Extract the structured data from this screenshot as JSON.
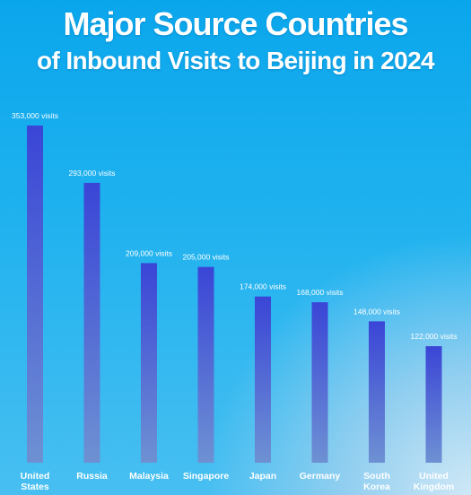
{
  "header": {
    "title_line1": "Major Source Countries",
    "title_line2": "of Inbound Visits to Beijing in 2024"
  },
  "colors": {
    "bar_top": "#3a45d6",
    "bar_bottom": "#6e91d3",
    "label": "#ffffff"
  },
  "chart_data": {
    "type": "bar",
    "title": "Major Source Countries of Inbound Visits to Beijing in 2024",
    "categories": [
      [
        "United",
        "States"
      ],
      [
        "Russia"
      ],
      [
        "Malaysia"
      ],
      [
        "Singapore"
      ],
      [
        "Japan"
      ],
      [
        "Germany"
      ],
      [
        "South",
        "Korea"
      ],
      [
        "United",
        "Kingdom"
      ]
    ],
    "values": [
      353000,
      293000,
      209000,
      205000,
      174000,
      168000,
      148000,
      122000
    ],
    "value_labels": [
      "353,000 visits",
      "293,000 visits",
      "209,000 visits",
      "205,000 visits",
      "174,000 visits",
      "168,000 visits",
      "148,000 visits",
      "122,000 visits"
    ],
    "xlabel": "",
    "ylabel": "",
    "ylim": [
      0,
      353000
    ],
    "grid": false,
    "legend": "none"
  }
}
